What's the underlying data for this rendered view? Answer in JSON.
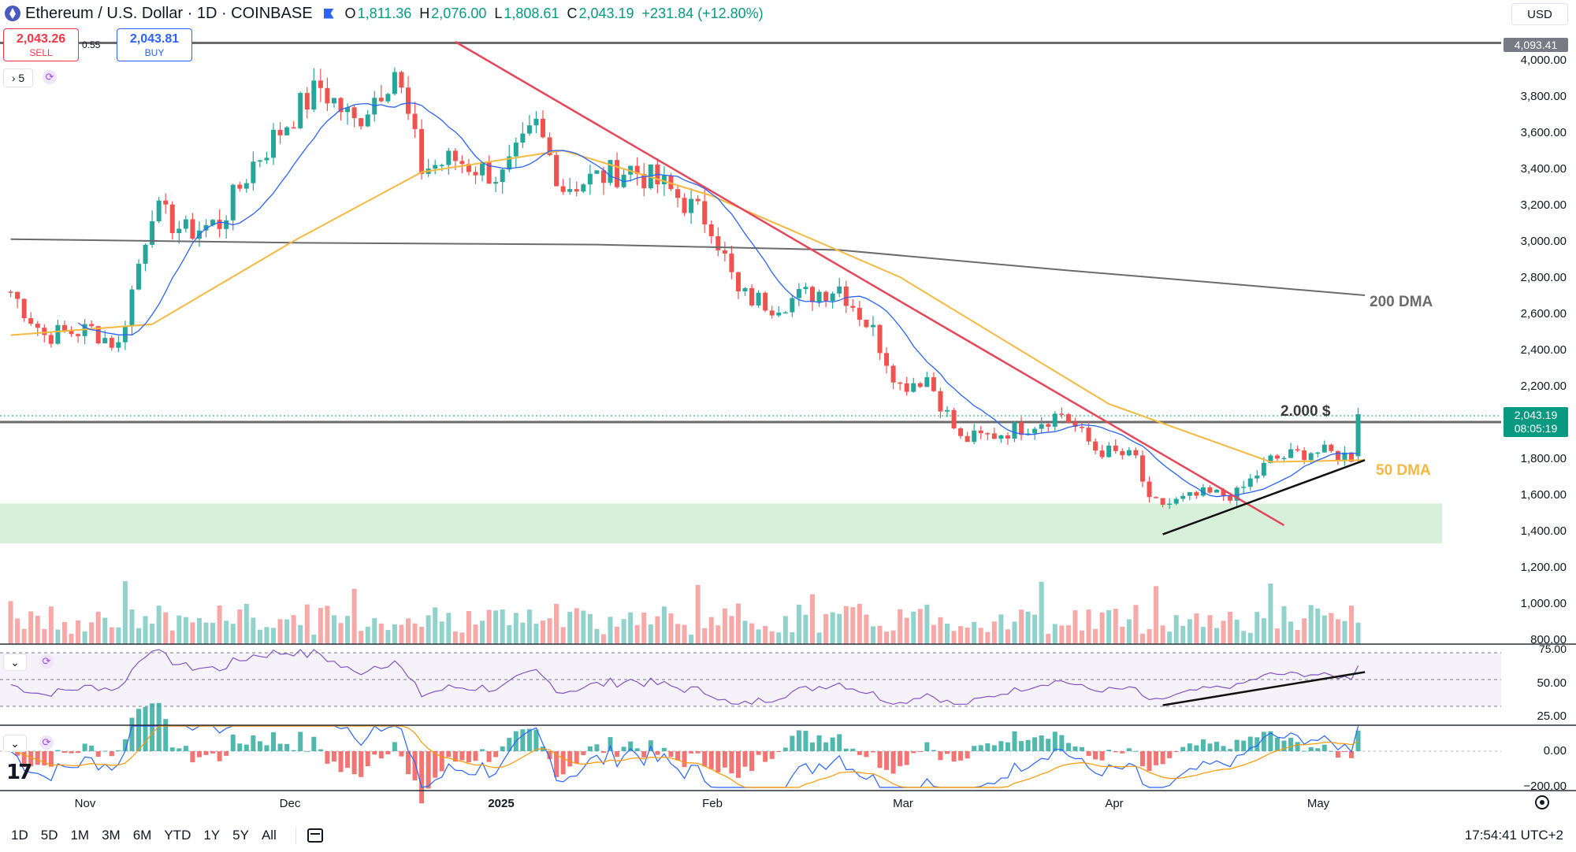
{
  "header": {
    "symbol": "Ethereum / U.S. Dollar · 1D · COINBASE",
    "ohlc": [
      {
        "k": "O",
        "v": "1,811.36"
      },
      {
        "k": "H",
        "v": "2,076.00"
      },
      {
        "k": "L",
        "v": "1,808.61"
      },
      {
        "k": "C",
        "v": "2,043.19"
      }
    ],
    "change": "+231.84 (+12.80%)",
    "currency": "USD"
  },
  "trade": {
    "sell_price": "2,043.26",
    "sell_label": "SELL",
    "spread": "0.55",
    "buy_price": "2,043.81",
    "buy_label": "BUY"
  },
  "indicator_count": "5",
  "price_axis": {
    "labels": [
      "4,000.00",
      "3,800.00",
      "3,600.00",
      "3,400.00",
      "3,200.00",
      "3,000.00",
      "2,800.00",
      "2,600.00",
      "2,400.00",
      "2,200.00",
      "1,800.00",
      "1,600.00",
      "1,400.00",
      "1,200.00",
      "1,000.00",
      "800.00"
    ],
    "top_tag": "4,093.41",
    "last_price": "2,043.19",
    "countdown": "08:05:19"
  },
  "rsi_axis": {
    "labels": [
      "75.00",
      "50.00",
      "25.00"
    ]
  },
  "macd_axis": {
    "labels": [
      "0.00",
      "−200.00"
    ]
  },
  "time_axis": [
    "Nov",
    "Dec",
    "2025",
    "Feb",
    "Mar",
    "Apr",
    "May"
  ],
  "annotations": {
    "dma200": "200 DMA",
    "dma50": "50 DMA",
    "level": "2.000 $"
  },
  "bottom": {
    "ranges": [
      "1D",
      "5D",
      "1M",
      "3M",
      "6M",
      "YTD",
      "1Y",
      "5Y",
      "All"
    ],
    "clock": "17:54:41 UTC+2"
  },
  "colors": {
    "up": "#26a69a",
    "down": "#ef5350",
    "sma_fast": "#2962ff",
    "dma50": "#f5b942",
    "dma200": "#6b6b6b",
    "trendline": "#e5475a",
    "zone": "#c8ebcd",
    "rsi": "#7e57c2"
  },
  "chart_data": {
    "type": "candlestick",
    "symbol": "ETHUSD",
    "timeframe": "1D",
    "x_ticks": [
      "Nov",
      "Dec",
      "2025",
      "Feb",
      "Mar",
      "Apr",
      "May"
    ],
    "price_range": [
      800,
      4150
    ],
    "horizontal_levels": [
      4093.41,
      2000
    ],
    "support_zone": [
      1330,
      1550
    ],
    "series": [
      {
        "name": "200 DMA",
        "points": [
          [
            "2024-10-20",
            3010
          ],
          [
            "2024-12-01",
            2990
          ],
          [
            "2025-01-15",
            2980
          ],
          [
            "2025-02-20",
            2950
          ],
          [
            "2025-03-25",
            2840
          ],
          [
            "2025-04-20",
            2760
          ],
          [
            "2025-05-09",
            2700
          ]
        ]
      },
      {
        "name": "50 DMA",
        "points": [
          [
            "2024-10-20",
            2480
          ],
          [
            "2024-11-10",
            2540
          ],
          [
            "2024-12-01",
            3000
          ],
          [
            "2024-12-20",
            3380
          ],
          [
            "2025-01-10",
            3500
          ],
          [
            "2025-02-01",
            3250
          ],
          [
            "2025-03-01",
            2800
          ],
          [
            "2025-04-01",
            2100
          ],
          [
            "2025-04-25",
            1780
          ],
          [
            "2025-05-09",
            1790
          ]
        ]
      }
    ],
    "close_approx": [
      [
        "2024-10-20",
        2720
      ],
      [
        "2024-10-25",
        2480
      ],
      [
        "2024-11-01",
        2510
      ],
      [
        "2024-11-05",
        2420
      ],
      [
        "2024-11-10",
        3180
      ],
      [
        "2024-11-15",
        3050
      ],
      [
        "2024-11-20",
        3100
      ],
      [
        "2024-11-25",
        3430
      ],
      [
        "2024-12-01",
        3700
      ],
      [
        "2024-12-05",
        3850
      ],
      [
        "2024-12-10",
        3650
      ],
      [
        "2024-12-16",
        3950
      ],
      [
        "2024-12-20",
        3400
      ],
      [
        "2024-12-25",
        3450
      ],
      [
        "2025-01-01",
        3350
      ],
      [
        "2025-01-06",
        3630
      ],
      [
        "2025-01-10",
        3300
      ],
      [
        "2025-01-15",
        3350
      ],
      [
        "2025-01-20",
        3400
      ],
      [
        "2025-01-25",
        3300
      ],
      [
        "2025-02-01",
        3100
      ],
      [
        "2025-02-05",
        2700
      ],
      [
        "2025-02-10",
        2650
      ],
      [
        "2025-02-15",
        2700
      ],
      [
        "2025-02-20",
        2750
      ],
      [
        "2025-02-25",
        2500
      ],
      [
        "2025-03-01",
        2200
      ],
      [
        "2025-03-05",
        2250
      ],
      [
        "2025-03-10",
        1900
      ],
      [
        "2025-03-15",
        1930
      ],
      [
        "2025-03-20",
        1980
      ],
      [
        "2025-03-25",
        2050
      ],
      [
        "2025-03-30",
        1850
      ],
      [
        "2025-04-05",
        1800
      ],
      [
        "2025-04-07",
        1550
      ],
      [
        "2025-04-10",
        1550
      ],
      [
        "2025-04-15",
        1600
      ],
      [
        "2025-04-20",
        1600
      ],
      [
        "2025-04-25",
        1790
      ],
      [
        "2025-05-01",
        1840
      ],
      [
        "2025-05-07",
        1811
      ],
      [
        "2025-05-08",
        2043.19
      ]
    ],
    "trendlines": [
      {
        "name": "downtrend",
        "from": [
          "2024-12-25",
          4100
        ],
        "to": [
          "2025-04-27",
          1430
        ]
      },
      {
        "name": "uptrend",
        "from": [
          "2025-04-09",
          1380
        ],
        "to": [
          "2025-05-09",
          1790
        ]
      }
    ],
    "indicators": [
      {
        "name": "RSI",
        "levels": [
          75,
          50,
          25
        ],
        "last": 75
      },
      {
        "name": "MACD",
        "levels": [
          0,
          -200
        ]
      }
    ]
  }
}
